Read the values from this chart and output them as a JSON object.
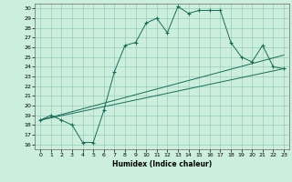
{
  "xlabel": "Humidex (Indice chaleur)",
  "background_color": "#cceedd",
  "grid_color": "#99ccbb",
  "line_color": "#1a6b5a",
  "xlim": [
    -0.5,
    23.5
  ],
  "ylim": [
    15.5,
    30.5
  ],
  "xticks": [
    0,
    1,
    2,
    3,
    4,
    5,
    6,
    7,
    8,
    9,
    10,
    11,
    12,
    13,
    14,
    15,
    16,
    17,
    18,
    19,
    20,
    21,
    22,
    23
  ],
  "yticks": [
    16,
    17,
    18,
    19,
    20,
    21,
    22,
    23,
    24,
    25,
    26,
    27,
    28,
    29,
    30
  ],
  "main_line": [
    [
      0,
      18.5
    ],
    [
      1,
      19.0
    ],
    [
      2,
      18.5
    ],
    [
      3,
      18.0
    ],
    [
      4,
      16.2
    ],
    [
      5,
      16.2
    ],
    [
      6,
      19.5
    ],
    [
      7,
      23.5
    ],
    [
      8,
      26.2
    ],
    [
      9,
      26.5
    ],
    [
      10,
      28.5
    ],
    [
      11,
      29.0
    ],
    [
      12,
      27.5
    ],
    [
      13,
      30.2
    ],
    [
      14,
      29.5
    ],
    [
      15,
      29.8
    ],
    [
      16,
      29.8
    ],
    [
      17,
      29.8
    ],
    [
      18,
      26.5
    ],
    [
      19,
      25.0
    ],
    [
      20,
      24.5
    ],
    [
      21,
      26.2
    ],
    [
      22,
      24.0
    ],
    [
      23,
      23.8
    ]
  ],
  "lower_line": [
    [
      0,
      18.5
    ],
    [
      23,
      23.8
    ]
  ],
  "upper_line": [
    [
      0,
      18.5
    ],
    [
      23,
      25.2
    ]
  ]
}
